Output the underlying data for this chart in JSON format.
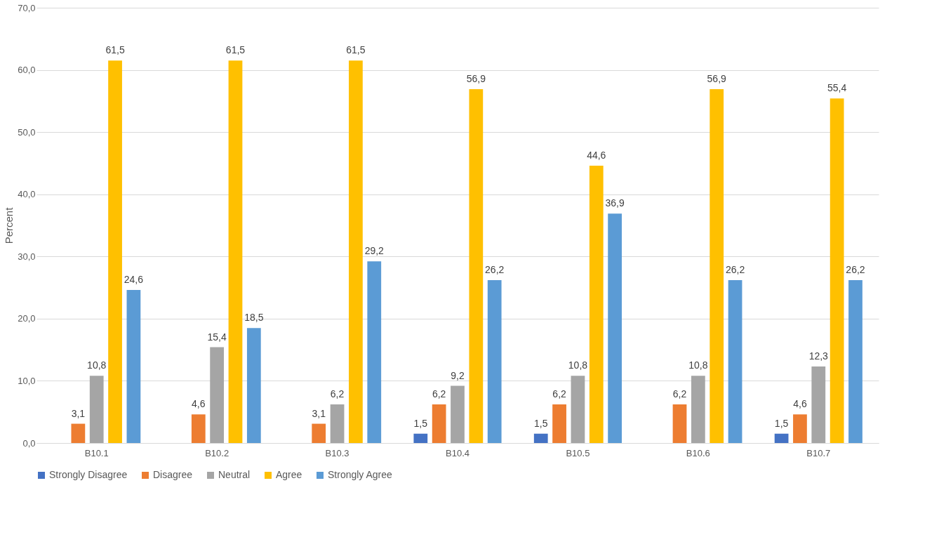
{
  "chart_data": {
    "type": "bar",
    "ylabel": "Percent",
    "categories": [
      "B10.1",
      "B10.2",
      "B10.3",
      "B10.4",
      "B10.5",
      "B10.6",
      "B10.7"
    ],
    "series": [
      {
        "name": "Strongly Disagree",
        "color": "#4472c4",
        "values": [
          null,
          null,
          null,
          1.5,
          1.5,
          null,
          1.5
        ],
        "value_labels": [
          null,
          null,
          null,
          "1,5",
          "1,5",
          null,
          "1,5"
        ]
      },
      {
        "name": "Disagree",
        "color": "#ed7d31",
        "values": [
          3.1,
          4.6,
          3.1,
          6.2,
          6.2,
          6.2,
          4.6
        ],
        "value_labels": [
          "3,1",
          "4,6",
          "3,1",
          "6,2",
          "6,2",
          "6,2",
          "4,6"
        ]
      },
      {
        "name": "Neutral",
        "color": "#a5a5a5",
        "values": [
          10.8,
          15.4,
          6.2,
          9.2,
          10.8,
          10.8,
          12.3
        ],
        "value_labels": [
          "10,8",
          "15,4",
          "6,2",
          "9,2",
          "10,8",
          "10,8",
          "12,3"
        ]
      },
      {
        "name": "Agree",
        "color": "#ffc000",
        "values": [
          61.5,
          61.5,
          61.5,
          56.9,
          44.6,
          56.9,
          55.4
        ],
        "value_labels": [
          "61,5",
          "61,5",
          "61,5",
          "56,9",
          "44,6",
          "56,9",
          "55,4"
        ]
      },
      {
        "name": "Strongly Agree",
        "color": "#5b9bd5",
        "values": [
          24.6,
          18.5,
          29.2,
          26.2,
          36.9,
          26.2,
          26.2
        ],
        "value_labels": [
          "24,6",
          "18,5",
          "29,2",
          "26,2",
          "36,9",
          "26,2",
          "26,2"
        ]
      }
    ],
    "ylim": [
      0,
      70
    ],
    "yticks": [
      {
        "value": 0,
        "label": "0,0"
      },
      {
        "value": 10,
        "label": "10,0"
      },
      {
        "value": 20,
        "label": "20,0"
      },
      {
        "value": 30,
        "label": "30,0"
      },
      {
        "value": 40,
        "label": "40,0"
      },
      {
        "value": 50,
        "label": "50,0"
      },
      {
        "value": 60,
        "label": "60,0"
      },
      {
        "value": 70,
        "label": "70,0"
      }
    ],
    "grid": "y",
    "legend": "bottom"
  }
}
